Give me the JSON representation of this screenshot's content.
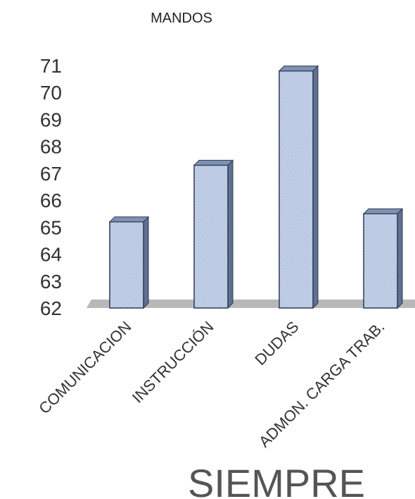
{
  "chart_data": {
    "type": "bar",
    "title": "MANDOS",
    "categories": [
      "COMUNICACION",
      "INSTRUCCIÓN",
      "DUDAS",
      "ADMON. CARGA TRAB."
    ],
    "values": [
      65.2,
      67.3,
      70.8,
      65.5
    ],
    "ylim": [
      62,
      71
    ],
    "yticks": [
      62,
      63,
      64,
      65,
      66,
      67,
      68,
      69,
      70,
      71
    ],
    "xlabel": "",
    "ylabel": "",
    "bar_color": "#c6d3ea",
    "bar_edge": "#2b3a55"
  },
  "footer_text": "SIEMPRE"
}
